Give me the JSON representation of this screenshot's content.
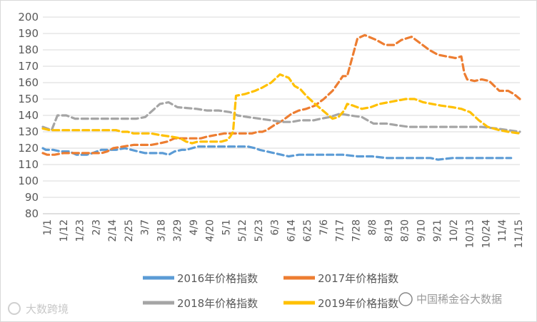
{
  "chart_data": {
    "type": "line",
    "ylim": [
      80,
      200
    ],
    "y_ticks": [
      "80",
      "90",
      "100",
      "110",
      "120",
      "130",
      "140",
      "150",
      "160",
      "170",
      "180",
      "190",
      "200"
    ],
    "x_ticks": [
      "1/1",
      "1/12",
      "1/23",
      "2/3",
      "2/14",
      "2/25",
      "3/7",
      "3/18",
      "3/29",
      "4/9",
      "4/20",
      "5/1",
      "5/12",
      "5/23",
      "6/3",
      "6/14",
      "6/25",
      "7/6",
      "7/17",
      "7/28",
      "8/8",
      "8/19",
      "8/30",
      "9/10",
      "9/21",
      "10/2",
      "10/13",
      "10/24",
      "11/4",
      "11/15"
    ],
    "grid": "horizontal",
    "legend_position": "bottom",
    "line_style": "dashed",
    "series": [
      {
        "name": "2016年价格指数",
        "color": "#5b9bd5",
        "points": [
          [
            0,
            120
          ],
          [
            2,
            119
          ],
          [
            7,
            119
          ],
          [
            12,
            118
          ],
          [
            14,
            118
          ],
          [
            18,
            118
          ],
          [
            23,
            116
          ],
          [
            26,
            116
          ],
          [
            30,
            116
          ],
          [
            34,
            117
          ],
          [
            37,
            118
          ],
          [
            40,
            119
          ],
          [
            45,
            119
          ],
          [
            50,
            119
          ],
          [
            56,
            120
          ],
          [
            65,
            118
          ],
          [
            70,
            117
          ],
          [
            77,
            117
          ],
          [
            82,
            117
          ],
          [
            86,
            116
          ],
          [
            88,
            117
          ],
          [
            90,
            118
          ],
          [
            95,
            119
          ],
          [
            98,
            119
          ],
          [
            106,
            121
          ],
          [
            116,
            121
          ],
          [
            128,
            121
          ],
          [
            132,
            121
          ],
          [
            140,
            121
          ],
          [
            145,
            120
          ],
          [
            148,
            119
          ],
          [
            153,
            118
          ],
          [
            158,
            117
          ],
          [
            163,
            116
          ],
          [
            168,
            115
          ],
          [
            175,
            116
          ],
          [
            182,
            116
          ],
          [
            188,
            116
          ],
          [
            195,
            116
          ],
          [
            205,
            116
          ],
          [
            215,
            115
          ],
          [
            225,
            115
          ],
          [
            235,
            114
          ],
          [
            245,
            114
          ],
          [
            255,
            114
          ],
          [
            265,
            114
          ],
          [
            270,
            113
          ],
          [
            280,
            114
          ],
          [
            290,
            114
          ],
          [
            305,
            114
          ],
          [
            320,
            114
          ]
        ]
      },
      {
        "name": "2017年价格指数",
        "color": "#ed7d31",
        "points": [
          [
            0,
            117
          ],
          [
            3,
            116
          ],
          [
            8,
            116
          ],
          [
            14,
            117
          ],
          [
            20,
            117
          ],
          [
            26,
            117
          ],
          [
            32,
            117
          ],
          [
            36,
            117
          ],
          [
            38,
            117
          ],
          [
            40,
            117
          ],
          [
            44,
            118
          ],
          [
            48,
            120
          ],
          [
            55,
            121
          ],
          [
            62,
            122
          ],
          [
            68,
            122
          ],
          [
            74,
            122
          ],
          [
            80,
            123
          ],
          [
            85,
            124
          ],
          [
            90,
            126
          ],
          [
            98,
            126
          ],
          [
            108,
            126
          ],
          [
            112,
            127
          ],
          [
            118,
            128
          ],
          [
            124,
            129
          ],
          [
            130,
            129
          ],
          [
            138,
            129
          ],
          [
            143,
            129
          ],
          [
            147,
            130
          ],
          [
            150,
            130
          ],
          [
            153,
            131
          ],
          [
            158,
            134
          ],
          [
            164,
            137
          ],
          [
            170,
            141
          ],
          [
            175,
            143
          ],
          [
            180,
            144
          ],
          [
            186,
            146
          ],
          [
            192,
            150
          ],
          [
            198,
            155
          ],
          [
            202,
            160
          ],
          [
            205,
            164
          ],
          [
            208,
            164
          ],
          [
            215,
            187
          ],
          [
            220,
            189
          ],
          [
            228,
            186
          ],
          [
            234,
            183
          ],
          [
            240,
            183
          ],
          [
            245,
            186
          ],
          [
            252,
            188
          ],
          [
            258,
            184
          ],
          [
            264,
            180
          ],
          [
            270,
            177
          ],
          [
            276,
            176
          ],
          [
            282,
            175
          ],
          [
            286,
            176
          ],
          [
            288,
            166
          ],
          [
            290,
            162
          ],
          [
            295,
            161
          ],
          [
            300,
            162
          ],
          [
            305,
            161
          ],
          [
            312,
            155
          ],
          [
            318,
            155
          ],
          [
            322,
            153
          ],
          [
            326,
            150
          ]
        ]
      },
      {
        "name": "2018年价格指数",
        "color": "#a5a5a5",
        "points": [
          [
            0,
            133
          ],
          [
            3,
            132
          ],
          [
            6,
            131
          ],
          [
            10,
            140
          ],
          [
            16,
            140
          ],
          [
            22,
            138
          ],
          [
            30,
            138
          ],
          [
            42,
            138
          ],
          [
            55,
            138
          ],
          [
            64,
            138
          ],
          [
            70,
            139
          ],
          [
            80,
            147
          ],
          [
            86,
            148
          ],
          [
            92,
            145
          ],
          [
            105,
            144
          ],
          [
            112,
            143
          ],
          [
            120,
            143
          ],
          [
            128,
            142
          ],
          [
            133,
            140
          ],
          [
            140,
            139
          ],
          [
            148,
            138
          ],
          [
            156,
            137
          ],
          [
            164,
            136
          ],
          [
            170,
            136
          ],
          [
            176,
            137
          ],
          [
            185,
            137
          ],
          [
            190,
            138
          ],
          [
            196,
            139
          ],
          [
            203,
            141
          ],
          [
            210,
            140
          ],
          [
            218,
            139
          ],
          [
            226,
            135
          ],
          [
            235,
            135
          ],
          [
            242,
            134
          ],
          [
            250,
            133
          ],
          [
            260,
            133
          ],
          [
            270,
            133
          ],
          [
            280,
            133
          ],
          [
            290,
            133
          ],
          [
            300,
            133
          ],
          [
            310,
            132
          ],
          [
            318,
            131
          ],
          [
            326,
            130
          ]
        ]
      },
      {
        "name": "2019年价格指数",
        "color": "#ffc000",
        "points": [
          [
            0,
            132
          ],
          [
            5,
            131
          ],
          [
            12,
            131
          ],
          [
            20,
            131
          ],
          [
            28,
            131
          ],
          [
            36,
            131
          ],
          [
            45,
            131
          ],
          [
            50,
            131
          ],
          [
            54,
            130
          ],
          [
            58,
            130
          ],
          [
            62,
            129
          ],
          [
            68,
            129
          ],
          [
            74,
            129
          ],
          [
            80,
            128
          ],
          [
            88,
            127
          ],
          [
            94,
            126
          ],
          [
            98,
            124
          ],
          [
            102,
            123
          ],
          [
            106,
            124
          ],
          [
            112,
            124
          ],
          [
            118,
            124
          ],
          [
            122,
            124
          ],
          [
            126,
            125
          ],
          [
            128,
            127
          ],
          [
            130,
            130
          ],
          [
            132,
            152
          ],
          [
            138,
            153
          ],
          [
            145,
            155
          ],
          [
            150,
            157
          ],
          [
            156,
            160
          ],
          [
            162,
            165
          ],
          [
            168,
            163
          ],
          [
            172,
            158
          ],
          [
            176,
            156
          ],
          [
            180,
            152
          ],
          [
            186,
            147
          ],
          [
            190,
            144
          ],
          [
            194,
            141
          ],
          [
            198,
            138
          ],
          [
            202,
            139
          ],
          [
            206,
            143
          ],
          [
            208,
            147
          ],
          [
            212,
            146
          ],
          [
            218,
            144
          ],
          [
            224,
            145
          ],
          [
            230,
            147
          ],
          [
            236,
            148
          ],
          [
            242,
            149
          ],
          [
            248,
            150
          ],
          [
            254,
            150
          ],
          [
            260,
            148
          ],
          [
            266,
            147
          ],
          [
            272,
            146
          ],
          [
            280,
            145
          ],
          [
            286,
            144
          ],
          [
            292,
            142
          ],
          [
            298,
            137
          ],
          [
            304,
            133
          ],
          [
            312,
            131
          ],
          [
            318,
            130
          ],
          [
            326,
            129
          ]
        ]
      }
    ]
  },
  "watermark": {
    "left_text": "大数跨境",
    "right_text": "中国稀金谷大数据"
  }
}
